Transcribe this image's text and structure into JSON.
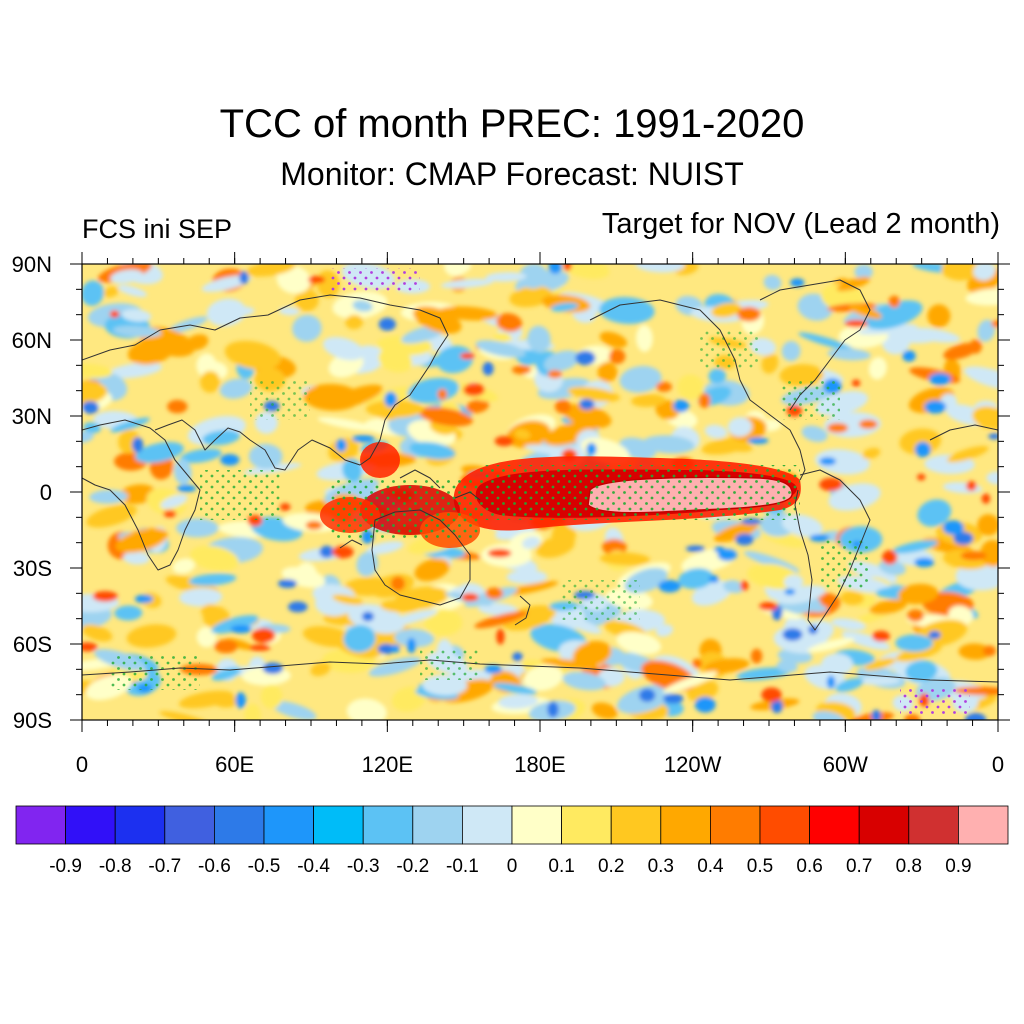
{
  "title": "TCC of month PREC: 1991-2020",
  "subtitle": "Monitor: CMAP   Forecast: NUIST",
  "left_label": "FCS ini SEP",
  "right_label": "Target for NOV (Lead 2 month)",
  "y_axis_labels": [
    "90N",
    "60N",
    "30N",
    "0",
    "30S",
    "60S",
    "90S"
  ],
  "x_axis_labels": [
    "0",
    "60E",
    "120E",
    "180E",
    "120W",
    "60W",
    "0"
  ],
  "colorbar": {
    "colors": [
      "#8125f0",
      "#3110f8",
      "#1c30f0",
      "#4060e0",
      "#2d7ae8",
      "#1e96fa",
      "#00bcf8",
      "#5cc2f4",
      "#9ed3f0",
      "#cfe8f6",
      "#ffffc8",
      "#ffea60",
      "#ffc820",
      "#ffa800",
      "#ff7c00",
      "#ff4c00",
      "#ff0000",
      "#d80000",
      "#d03030",
      "#ffb0b0"
    ],
    "labels": [
      "-0.9",
      "-0.8",
      "-0.7",
      "-0.6",
      "-0.5",
      "-0.4",
      "-0.3",
      "-0.2",
      "-0.1",
      "0",
      "0.1",
      "0.2",
      "0.3",
      "0.4",
      "0.5",
      "0.6",
      "0.7",
      "0.8",
      "0.9"
    ]
  }
}
